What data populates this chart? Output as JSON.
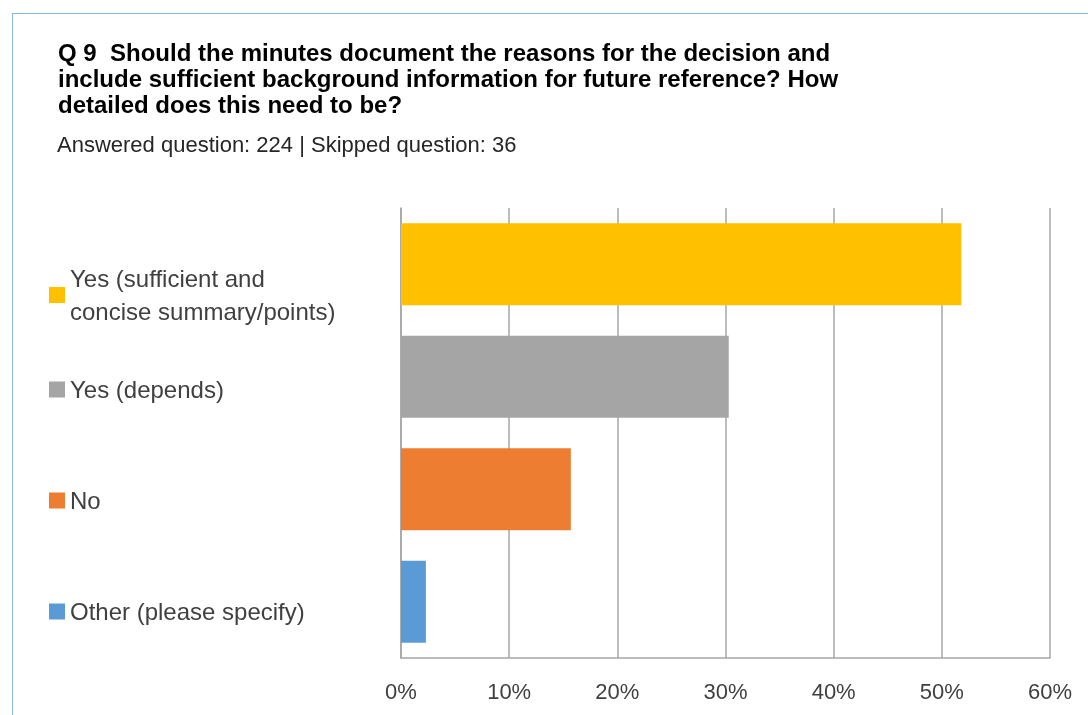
{
  "chart_data": {
    "type": "bar",
    "orientation": "horizontal",
    "title": "Q 9  Should the minutes document the reasons for the decision and include sufficient background information for future reference? How detailed does this need to be?",
    "subtitle": "Answered question: 224 | Skipped question: 36",
    "categories": [
      null,
      null,
      null,
      null
    ],
    "series": [
      {
        "name": "Yes (sufficient and concise summary/points)",
        "color": "#ffc000",
        "values": [
          51.8,
          null,
          null,
          null
        ]
      },
      {
        "name": "Yes (depends)",
        "color": "#a5a5a5",
        "values": [
          null,
          30.3,
          null,
          null
        ]
      },
      {
        "name": "No",
        "color": "#ed7d31",
        "values": [
          null,
          null,
          15.7,
          null
        ]
      },
      {
        "name": "Other (please specify)",
        "color": "#5b9bd5",
        "values": [
          null,
          null,
          null,
          2.3
        ]
      }
    ],
    "xlim": [
      0,
      60
    ],
    "xticks": [
      {
        "value": 0,
        "label": "0%"
      },
      {
        "value": 10,
        "label": "10%"
      },
      {
        "value": 20,
        "label": "20%"
      },
      {
        "value": 30,
        "label": "30%"
      },
      {
        "value": 40,
        "label": "40%"
      },
      {
        "value": 50,
        "label": "50%"
      },
      {
        "value": 60,
        "label": "60%"
      }
    ],
    "grid": "x",
    "legend": "left"
  }
}
